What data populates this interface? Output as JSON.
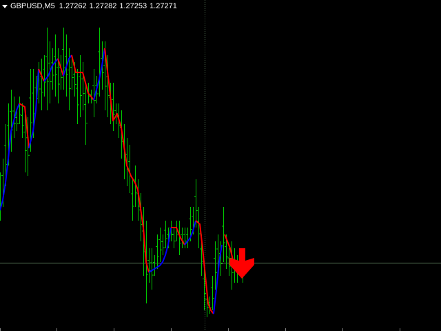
{
  "header": {
    "symbol_timeframe": "GBPUSD,M5",
    "open": "1.27262",
    "high": "1.27282",
    "low": "1.27253",
    "close": "1.27271"
  },
  "colors": {
    "background": "#000000",
    "candle_bar": "#00c800",
    "up_line": "#0000ff",
    "down_line": "#ff0000",
    "crosshair": "#5a7a5a",
    "signal_arrow": "#ff0000"
  },
  "icons": {
    "menu": "chart-menu-triangle-icon",
    "signal": "sell-arrow-down-icon"
  }
}
